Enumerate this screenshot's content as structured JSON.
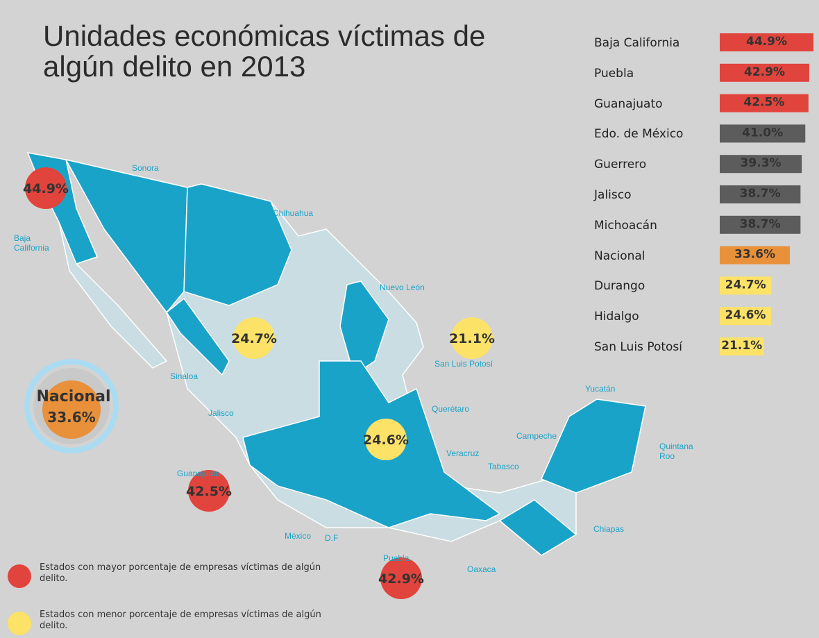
{
  "chart_data": {
    "type": "bar",
    "orientation": "horizontal",
    "title": "Unidades económicas víctimas de algún delito en 2013",
    "categories": [
      "Baja California",
      "Puebla",
      "Guanajuato",
      "Edo. de México",
      "Guerrero",
      "Jalisco",
      "Michoacán",
      "Nacional",
      "Durango",
      "Hidalgo",
      "San Luis Potosí"
    ],
    "values": [
      44.9,
      42.9,
      42.5,
      41.0,
      39.3,
      38.7,
      38.7,
      33.6,
      24.7,
      24.6,
      21.1
    ],
    "value_labels": [
      "44.9%",
      "42.9%",
      "42.5%",
      "41.0%",
      "39.3%",
      "38.7%",
      "38.7%",
      "33.6%",
      "24.7%",
      "24.6%",
      "21.1%"
    ],
    "colors": [
      "#e0443c",
      "#e0443c",
      "#e0443c",
      "#5c5c5c",
      "#5c5c5c",
      "#5c5c5c",
      "#5c5c5c",
      "#e8913a",
      "#fde268",
      "#fde268",
      "#fde268"
    ]
  },
  "map": {
    "state_labels": [
      "Sonora",
      "Chihuahua",
      "Baja California",
      "Nuevo León",
      "Sinaloa",
      "San Luis Potosí",
      "Jalisco",
      "Querétaro",
      "Yucatán",
      "Campeche",
      "Quintana Roo",
      "Veracruz",
      "Tabasco",
      "Guanajuato",
      "México",
      "D.F",
      "Chiapas",
      "Puebla",
      "Oaxaca"
    ],
    "markers": [
      {
        "value": 44.9,
        "label": "44.9%",
        "color": "#e0443c"
      },
      {
        "value": 24.7,
        "label": "24.7%",
        "color": "#fde268"
      },
      {
        "value": 21.1,
        "label": "21.1%",
        "color": "#fde268"
      },
      {
        "value": 24.6,
        "label": "24.6%",
        "color": "#fde268"
      },
      {
        "value": 42.5,
        "label": "42.5%",
        "color": "#e0443c"
      },
      {
        "value": 42.9,
        "label": "42.9%",
        "color": "#e0443c"
      }
    ],
    "national": {
      "name": "Nacional",
      "value": 33.6,
      "label": "33.6%",
      "color": "#e8913a"
    }
  },
  "legend": [
    {
      "text": "Estados con mayor porcentaje de empresas víctimas de algún delito.",
      "color": "#e0443c"
    },
    {
      "text": "Estados con menor porcentaje de empresas víctimas de algún delito.",
      "color": "#fde268"
    }
  ]
}
